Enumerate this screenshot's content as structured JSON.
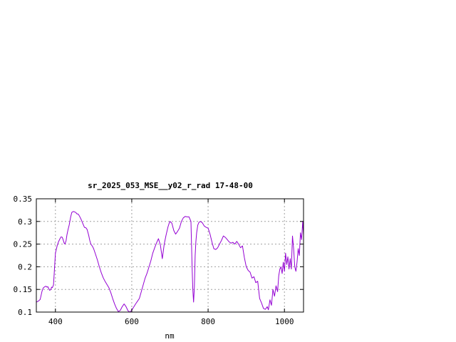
{
  "chart_data": {
    "type": "line",
    "title": "sr_2025_053_MSE__y02_r_rad 17-48-00",
    "xlabel": "nm",
    "ylabel": "",
    "xlim": [
      350,
      1050
    ],
    "ylim": [
      0.1,
      0.35
    ],
    "x_ticks": [
      400,
      600,
      800,
      1000
    ],
    "x_tick_labels": [
      "400",
      "600",
      "800",
      "1000"
    ],
    "y_ticks": [
      0.1,
      0.15,
      0.2,
      0.25,
      0.3,
      0.35
    ],
    "y_tick_labels": [
      "0.1",
      "0.15",
      "0.2",
      "0.25",
      "0.3",
      "0.35"
    ],
    "grid": true,
    "series": [
      {
        "color": "#9400d3",
        "x": [
          350,
          355,
          360,
          365,
          368,
          372,
          375,
          378,
          380,
          385,
          388,
          390,
          392,
          395,
          400,
          405,
          408,
          412,
          415,
          418,
          420,
          423,
          425,
          428,
          430,
          433,
          436,
          440,
          443,
          447,
          450,
          453,
          456,
          460,
          463,
          467,
          470,
          473,
          476,
          480,
          483,
          487,
          490,
          493,
          497,
          500,
          505,
          510,
          515,
          520,
          525,
          530,
          535,
          540,
          545,
          550,
          555,
          560,
          565,
          570,
          575,
          580,
          585,
          590,
          595,
          600,
          605,
          610,
          615,
          620,
          625,
          630,
          635,
          640,
          645,
          650,
          655,
          660,
          665,
          670,
          675,
          680,
          685,
          690,
          695,
          698,
          700,
          705,
          710,
          715,
          720,
          725,
          730,
          735,
          740,
          745,
          750,
          755,
          758,
          760,
          762,
          764,
          766,
          768,
          770,
          773,
          776,
          780,
          785,
          790,
          795,
          800,
          805,
          810,
          815,
          820,
          825,
          830,
          835,
          840,
          845,
          850,
          855,
          860,
          865,
          870,
          875,
          880,
          885,
          890,
          895,
          900,
          905,
          910,
          915,
          920,
          925,
          930,
          935,
          940,
          945,
          950,
          955,
          958,
          962,
          966,
          970,
          974,
          978,
          982,
          985,
          988,
          991,
          994,
          997,
          1000,
          1003,
          1006,
          1009,
          1012,
          1015,
          1018,
          1021,
          1024,
          1027,
          1030,
          1033,
          1036,
          1039,
          1042,
          1045,
          1048,
          1050
        ],
        "y": [
          0.122,
          0.124,
          0.128,
          0.146,
          0.153,
          0.156,
          0.157,
          0.155,
          0.156,
          0.148,
          0.15,
          0.155,
          0.154,
          0.16,
          0.23,
          0.248,
          0.255,
          0.262,
          0.266,
          0.265,
          0.26,
          0.252,
          0.25,
          0.258,
          0.27,
          0.282,
          0.292,
          0.31,
          0.32,
          0.322,
          0.321,
          0.32,
          0.317,
          0.316,
          0.312,
          0.305,
          0.299,
          0.293,
          0.287,
          0.286,
          0.282,
          0.27,
          0.258,
          0.25,
          0.245,
          0.24,
          0.228,
          0.215,
          0.2,
          0.187,
          0.176,
          0.168,
          0.161,
          0.154,
          0.143,
          0.13,
          0.118,
          0.108,
          0.101,
          0.104,
          0.112,
          0.118,
          0.112,
          0.103,
          0.1,
          0.104,
          0.111,
          0.118,
          0.124,
          0.13,
          0.145,
          0.16,
          0.175,
          0.186,
          0.199,
          0.213,
          0.23,
          0.242,
          0.253,
          0.262,
          0.248,
          0.218,
          0.25,
          0.27,
          0.288,
          0.296,
          0.3,
          0.296,
          0.28,
          0.272,
          0.278,
          0.285,
          0.3,
          0.308,
          0.311,
          0.31,
          0.31,
          0.3,
          0.2,
          0.15,
          0.122,
          0.155,
          0.225,
          0.255,
          0.275,
          0.292,
          0.298,
          0.3,
          0.297,
          0.29,
          0.287,
          0.285,
          0.272,
          0.255,
          0.24,
          0.238,
          0.242,
          0.25,
          0.258,
          0.268,
          0.265,
          0.26,
          0.255,
          0.252,
          0.254,
          0.25,
          0.256,
          0.25,
          0.242,
          0.246,
          0.22,
          0.2,
          0.192,
          0.188,
          0.175,
          0.178,
          0.165,
          0.168,
          0.13,
          0.12,
          0.108,
          0.106,
          0.112,
          0.105,
          0.127,
          0.115,
          0.15,
          0.135,
          0.158,
          0.145,
          0.18,
          0.195,
          0.2,
          0.185,
          0.21,
          0.19,
          0.23,
          0.205,
          0.222,
          0.195,
          0.218,
          0.195,
          0.268,
          0.24,
          0.2,
          0.19,
          0.21,
          0.24,
          0.225,
          0.275,
          0.26,
          0.3,
          0.27
        ]
      }
    ]
  }
}
